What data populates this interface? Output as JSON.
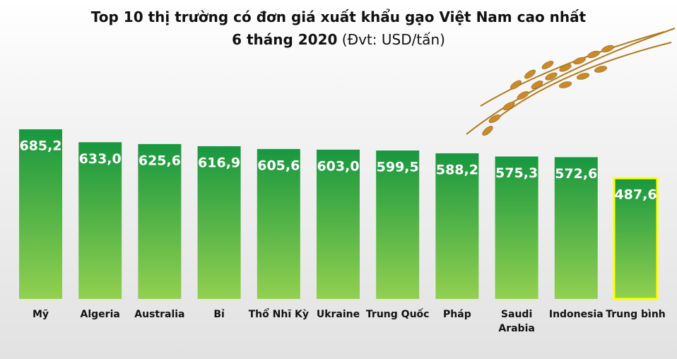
{
  "chart_data": {
    "type": "bar",
    "title": "Top 10 thị trường có đơn giá xuất khẩu gạo Việt Nam cao nhất",
    "subtitle": "6 tháng 2020",
    "unit": "(Đvt: USD/tấn)",
    "categories": [
      "Mỹ",
      "Algeria",
      "Australia",
      "Bỉ",
      "Thổ Nhĩ Kỳ",
      "Ukraine",
      "Trung Quốc",
      "Pháp",
      "Saudi Arabia",
      "Indonesia",
      "Trung bình"
    ],
    "values": [
      685.2,
      633.0,
      625.6,
      616.9,
      605.6,
      603.0,
      599.5,
      588.2,
      575.3,
      572.6,
      487.6
    ],
    "value_labels": [
      "685,2",
      "633,0",
      "625,6",
      "616,9",
      "605,6",
      "603,0",
      "599,5",
      "588,2",
      "575,3",
      "572,6",
      "487,6"
    ],
    "color": "#1c9b45",
    "highlight_index": 10,
    "highlight_color": "#ffff00"
  }
}
